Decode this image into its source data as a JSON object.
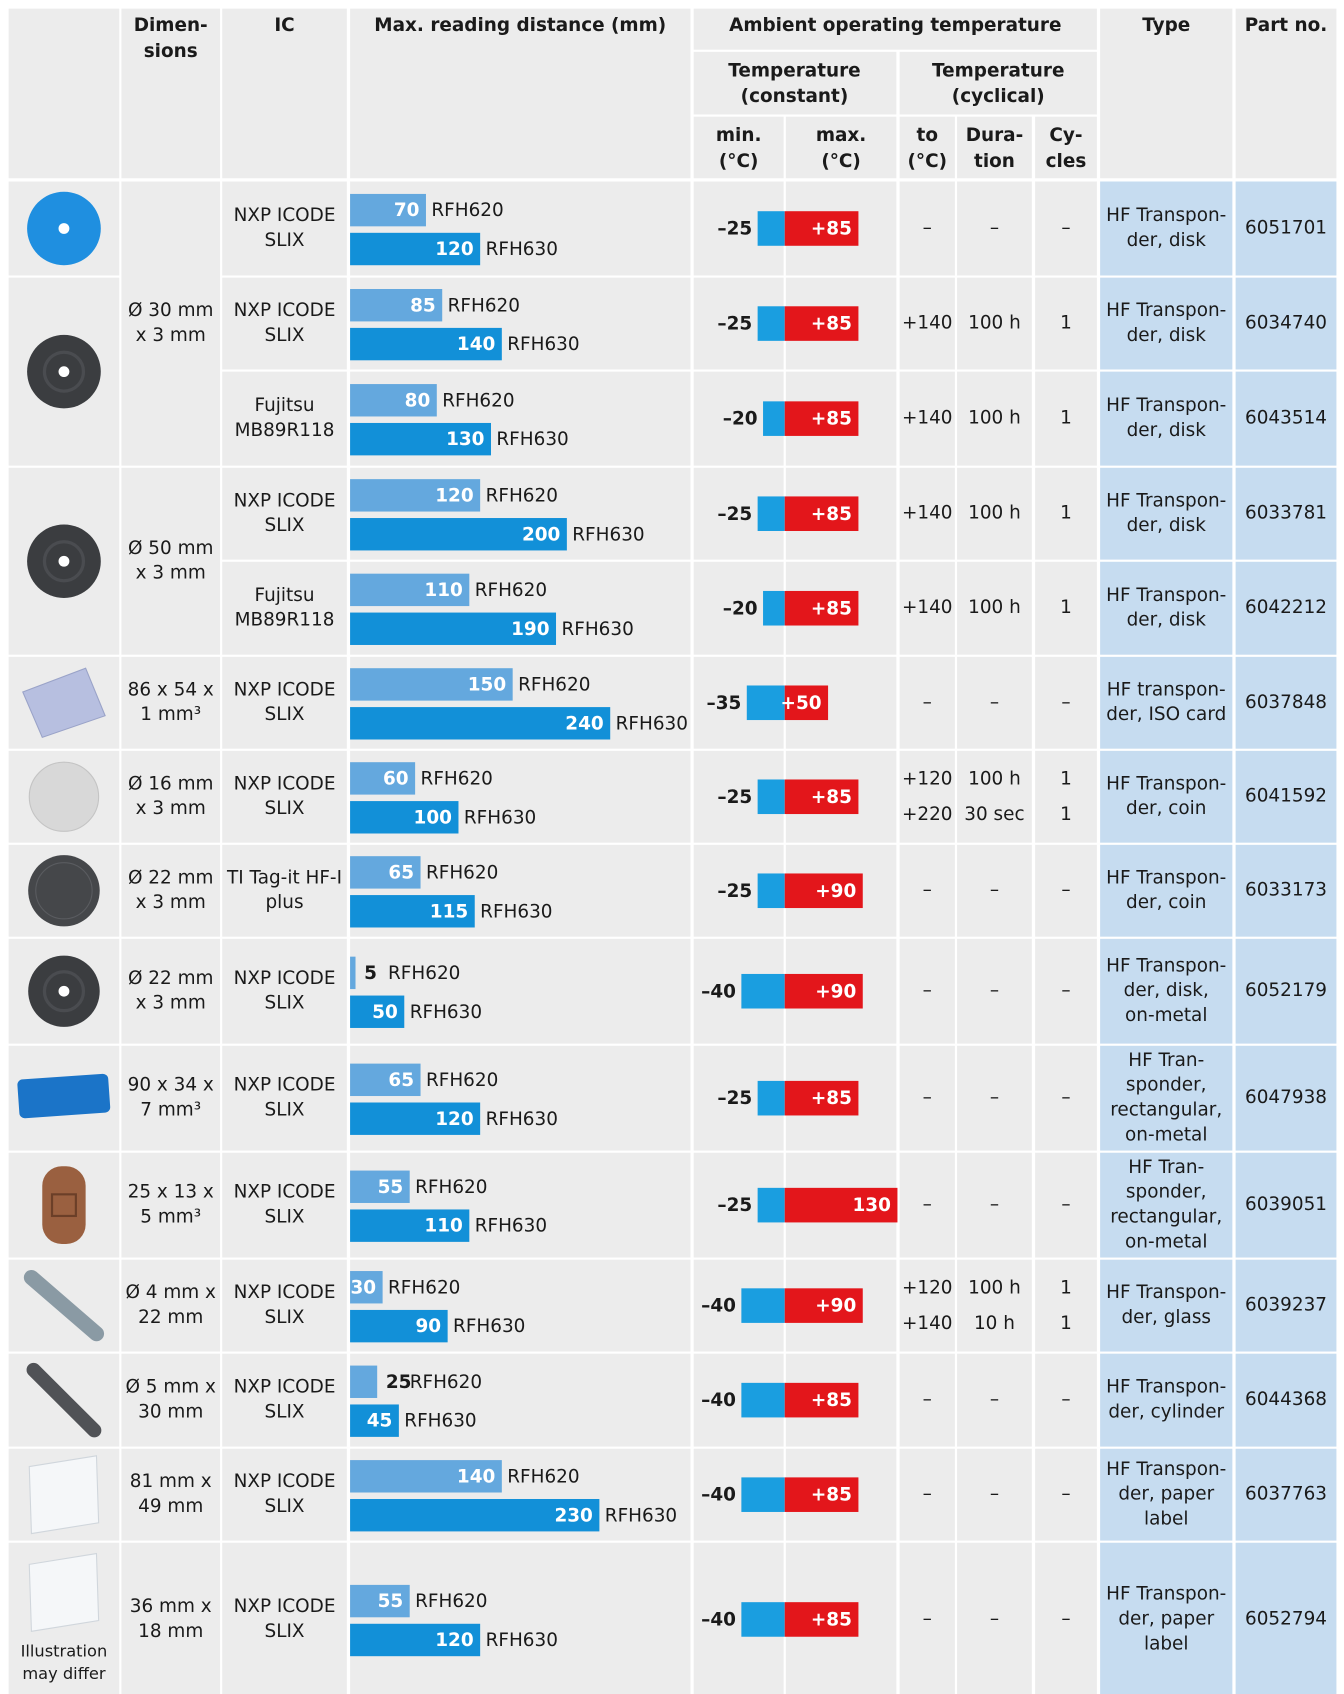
{
  "header": {
    "dimensions": [
      "Dimen-",
      "sions"
    ],
    "ic": [
      "IC"
    ],
    "reading": [
      "Max. reading distance (mm)"
    ],
    "ambient": [
      "Ambient operating temperature"
    ],
    "constant": [
      "Temperature",
      "(constant)"
    ],
    "cyclical": [
      "Temperature",
      "(cyclical)"
    ],
    "min": [
      "min.",
      "(°C)"
    ],
    "max": [
      "max.",
      "(°C)"
    ],
    "to": [
      "to",
      "(°C)"
    ],
    "duration": [
      "Dura-",
      "tion"
    ],
    "cycles": [
      "Cy-",
      "cles"
    ],
    "type": [
      "Type"
    ],
    "part": [
      "Part no."
    ]
  },
  "groups": [
    {
      "dimensions": [
        "Ø 30 mm",
        "x 3 mm"
      ],
      "rows": [
        {
          "ic": [
            "NXP ICODE",
            "SLIX"
          ],
          "readings": [
            {
              "value": 70,
              "reader": "RFH620"
            },
            {
              "value": 120,
              "reader": "RFH630"
            }
          ],
          "min": {
            "value": -25,
            "label": "–25"
          },
          "max": {
            "value": 85,
            "label": "+85"
          },
          "cyclic": [
            {
              "to": "–",
              "duration": "–",
              "cycles": "–"
            }
          ],
          "type": [
            "HF Transpon-",
            "der, disk"
          ],
          "part": "6051701"
        },
        {
          "ic": [
            "NXP ICODE",
            "SLIX"
          ],
          "readings": [
            {
              "value": 85,
              "reader": "RFH620"
            },
            {
              "value": 140,
              "reader": "RFH630"
            }
          ],
          "min": {
            "value": -25,
            "label": "–25"
          },
          "max": {
            "value": 85,
            "label": "+85"
          },
          "cyclic": [
            {
              "to": "+140",
              "duration": "100 h",
              "cycles": 1
            }
          ],
          "type": [
            "HF Transpon-",
            "der, disk"
          ],
          "part": "6034740"
        },
        {
          "ic": [
            "Fujitsu",
            "MB89R118"
          ],
          "readings": [
            {
              "value": 80,
              "reader": "RFH620"
            },
            {
              "value": 130,
              "reader": "RFH630"
            }
          ],
          "min": {
            "value": -20,
            "label": "–20"
          },
          "max": {
            "value": 85,
            "label": "+85"
          },
          "cyclic": [
            {
              "to": "+140",
              "duration": "100 h",
              "cycles": 1
            }
          ],
          "type": [
            "HF Transpon-",
            "der, disk"
          ],
          "part": "6043514"
        }
      ]
    },
    {
      "dimensions": [
        "Ø 50 mm",
        "x 3 mm"
      ],
      "rows": [
        {
          "ic": [
            "NXP ICODE",
            "SLIX"
          ],
          "readings": [
            {
              "value": 120,
              "reader": "RFH620"
            },
            {
              "value": 200,
              "reader": "RFH630"
            }
          ],
          "min": {
            "value": -25,
            "label": "–25"
          },
          "max": {
            "value": 85,
            "label": "+85"
          },
          "cyclic": [
            {
              "to": "+140",
              "duration": "100 h",
              "cycles": 1
            }
          ],
          "type": [
            "HF Transpon-",
            "der, disk"
          ],
          "part": "6033781"
        },
        {
          "ic": [
            "Fujitsu",
            "MB89R118"
          ],
          "readings": [
            {
              "value": 110,
              "reader": "RFH620"
            },
            {
              "value": 190,
              "reader": "RFH630"
            }
          ],
          "min": {
            "value": -20,
            "label": "–20"
          },
          "max": {
            "value": 85,
            "label": "+85"
          },
          "cyclic": [
            {
              "to": "+140",
              "duration": "100 h",
              "cycles": 1
            }
          ],
          "type": [
            "HF Transpon-",
            "der, disk"
          ],
          "part": "6042212"
        }
      ]
    },
    {
      "dimensions": [
        "86 x 54 x",
        "1 mm³"
      ],
      "rows": [
        {
          "ic": [
            "NXP ICODE",
            "SLIX"
          ],
          "readings": [
            {
              "value": 150,
              "reader": "RFH620"
            },
            {
              "value": 240,
              "reader": "RFH630"
            }
          ],
          "min": {
            "value": -35,
            "label": "–35"
          },
          "max": {
            "value": 50,
            "label": "+50"
          },
          "cyclic": [
            {
              "to": "–",
              "duration": "–",
              "cycles": "–"
            }
          ],
          "type": [
            "HF transpon-",
            "der, ISO card"
          ],
          "part": "6037848"
        }
      ]
    },
    {
      "dimensions": [
        "Ø 16 mm",
        "x 3 mm"
      ],
      "rows": [
        {
          "ic": [
            "NXP ICODE",
            "SLIX"
          ],
          "readings": [
            {
              "value": 60,
              "reader": "RFH620"
            },
            {
              "value": 100,
              "reader": "RFH630"
            }
          ],
          "min": {
            "value": -25,
            "label": "–25"
          },
          "max": {
            "value": 85,
            "label": "+85"
          },
          "cyclic": [
            {
              "to": "+120",
              "duration": "100 h",
              "cycles": 1
            },
            {
              "to": "+220",
              "duration": "30 sec",
              "cycles": 1
            }
          ],
          "type": [
            "HF Transpon-",
            "der, coin"
          ],
          "part": "6041592"
        }
      ]
    },
    {
      "dimensions": [
        "Ø 22 mm",
        "x 3 mm"
      ],
      "rows": [
        {
          "ic": [
            "TI Tag-it HF-I",
            "plus"
          ],
          "readings": [
            {
              "value": 65,
              "reader": "RFH620"
            },
            {
              "value": 115,
              "reader": "RFH630"
            }
          ],
          "min": {
            "value": -25,
            "label": "–25"
          },
          "max": {
            "value": 90,
            "label": "+90"
          },
          "cyclic": [
            {
              "to": "–",
              "duration": "–",
              "cycles": "–"
            }
          ],
          "type": [
            "HF Transpon-",
            "der, coin"
          ],
          "part": "6033173"
        }
      ]
    },
    {
      "dimensions": [
        "Ø 22 mm",
        "x 3 mm"
      ],
      "rows": [
        {
          "ic": [
            "NXP ICODE",
            "SLIX"
          ],
          "readings": [
            {
              "value": 5,
              "reader": "RFH620"
            },
            {
              "value": 50,
              "reader": "RFH630"
            }
          ],
          "min": {
            "value": -40,
            "label": "–40"
          },
          "max": {
            "value": 90,
            "label": "+90"
          },
          "cyclic": [
            {
              "to": "–",
              "duration": "–",
              "cycles": "–"
            }
          ],
          "type": [
            "HF Transpon-",
            "der, disk,",
            "on-metal"
          ],
          "part": "6052179"
        }
      ]
    },
    {
      "dimensions": [
        "90 x 34 x",
        "7 mm³"
      ],
      "rows": [
        {
          "ic": [
            "NXP ICODE",
            "SLIX"
          ],
          "readings": [
            {
              "value": 65,
              "reader": "RFH620"
            },
            {
              "value": 120,
              "reader": "RFH630"
            }
          ],
          "min": {
            "value": -25,
            "label": "–25"
          },
          "max": {
            "value": 85,
            "label": "+85"
          },
          "cyclic": [
            {
              "to": "–",
              "duration": "–",
              "cycles": "–"
            }
          ],
          "type": [
            "HF Tran-",
            "sponder,",
            "rectangular,",
            "on-metal"
          ],
          "part": "6047938"
        }
      ]
    },
    {
      "dimensions": [
        "25 x 13 x",
        "5 mm³"
      ],
      "rows": [
        {
          "ic": [
            "NXP ICODE",
            "SLIX"
          ],
          "readings": [
            {
              "value": 55,
              "reader": "RFH620"
            },
            {
              "value": 110,
              "reader": "RFH630"
            }
          ],
          "min": {
            "value": -25,
            "label": "–25"
          },
          "max": {
            "value": 130,
            "label": "130"
          },
          "cyclic": [
            {
              "to": "–",
              "duration": "–",
              "cycles": "–"
            }
          ],
          "type": [
            "HF Tran-",
            "sponder,",
            "rectangular,",
            "on-metal"
          ],
          "part": "6039051"
        }
      ]
    },
    {
      "dimensions": [
        "Ø 4 mm x",
        "22 mm"
      ],
      "rows": [
        {
          "ic": [
            "NXP ICODE",
            "SLIX"
          ],
          "readings": [
            {
              "value": 30,
              "reader": "RFH620"
            },
            {
              "value": 90,
              "reader": "RFH630"
            }
          ],
          "min": {
            "value": -40,
            "label": "–40"
          },
          "max": {
            "value": 90,
            "label": "+90"
          },
          "cyclic": [
            {
              "to": "+120",
              "duration": "100 h",
              "cycles": 1
            },
            {
              "to": "+140",
              "duration": "10 h",
              "cycles": 1
            }
          ],
          "type": [
            "HF Transpon-",
            "der, glass"
          ],
          "part": "6039237"
        }
      ]
    },
    {
      "dimensions": [
        "Ø 5 mm x",
        "30 mm"
      ],
      "rows": [
        {
          "ic": [
            "NXP ICODE",
            "SLIX"
          ],
          "readings": [
            {
              "value": 25,
              "reader": "RFH620"
            },
            {
              "value": 45,
              "reader": "RFH630"
            }
          ],
          "min": {
            "value": -40,
            "label": "–40"
          },
          "max": {
            "value": 85,
            "label": "+85"
          },
          "cyclic": [
            {
              "to": "–",
              "duration": "–",
              "cycles": "–"
            }
          ],
          "type": [
            "HF Transpon-",
            "der, cylinder"
          ],
          "part": "6044368"
        }
      ]
    },
    {
      "dimensions": [
        "81 mm x",
        "49 mm"
      ],
      "rows": [
        {
          "ic": [
            "NXP ICODE",
            "SLIX"
          ],
          "readings": [
            {
              "value": 140,
              "reader": "RFH620"
            },
            {
              "value": 230,
              "reader": "RFH630"
            }
          ],
          "min": {
            "value": -40,
            "label": "–40"
          },
          "max": {
            "value": 85,
            "label": "+85"
          },
          "cyclic": [
            {
              "to": "–",
              "duration": "–",
              "cycles": "–"
            }
          ],
          "type": [
            "HF Transpon-",
            "der, paper",
            "label"
          ],
          "part": "6037763"
        }
      ]
    },
    {
      "dimensions": [
        "36 mm x",
        "18 mm"
      ],
      "rows": [
        {
          "ic": [
            "NXP ICODE",
            "SLIX"
          ],
          "readings": [
            {
              "value": 55,
              "reader": "RFH620"
            },
            {
              "value": 120,
              "reader": "RFH630"
            }
          ],
          "min": {
            "value": -40,
            "label": "–40"
          },
          "max": {
            "value": 85,
            "label": "+85"
          },
          "cyclic": [
            {
              "to": "–",
              "duration": "–",
              "cycles": "–"
            }
          ],
          "type": [
            "HF Transpon-",
            "der, paper",
            "label"
          ],
          "part": "6052794"
        }
      ]
    }
  ],
  "note": [
    "Illustration",
    "may differ"
  ]
}
